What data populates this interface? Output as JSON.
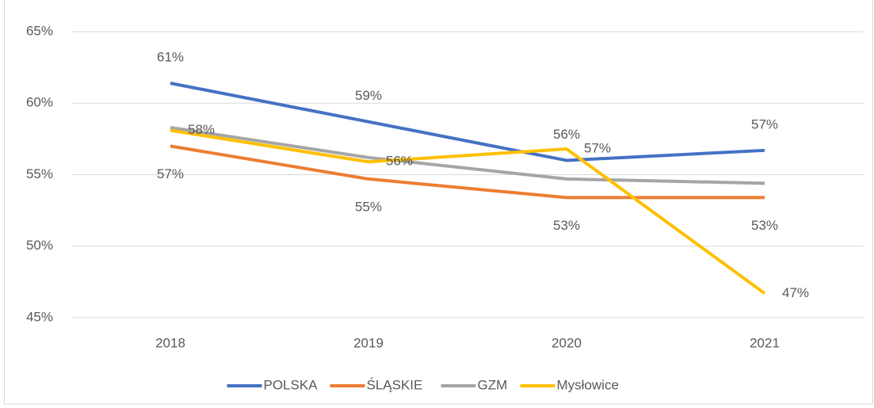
{
  "chart_data": {
    "type": "line",
    "categories": [
      "2018",
      "2019",
      "2020",
      "2021"
    ],
    "series": [
      {
        "name": "POLSKA",
        "color": "#4472c4",
        "values": [
          61.4,
          58.7,
          56.0,
          56.7
        ],
        "value_labels": [
          "61%",
          "59%",
          "56%",
          "57%"
        ],
        "label_position": "above"
      },
      {
        "name": "ŚLĄSKIE",
        "color": "#ed7d31",
        "values": [
          57.0,
          54.7,
          53.4,
          53.4
        ],
        "value_labels": [
          "57%",
          "55%",
          "53%",
          "53%"
        ],
        "label_position": "below"
      },
      {
        "name": "GZM",
        "color": "#a5a5a5",
        "values": [
          58.3,
          56.2,
          54.7,
          54.4
        ]
      },
      {
        "name": "Mysłowice",
        "color": "#ffc000",
        "values": [
          58.1,
          55.9,
          56.8,
          46.7
        ],
        "value_labels": [
          "58%",
          "56%",
          "57%",
          "47%"
        ],
        "label_position": "right"
      }
    ],
    "ylim": [
      45,
      65
    ],
    "yticks": [
      {
        "value": 45,
        "label": "45%"
      },
      {
        "value": 50,
        "label": "50%"
      },
      {
        "value": 55,
        "label": "55%"
      },
      {
        "value": 60,
        "label": "60%"
      },
      {
        "value": 65,
        "label": "65%"
      }
    ],
    "grid": true,
    "legend": "bottom"
  }
}
